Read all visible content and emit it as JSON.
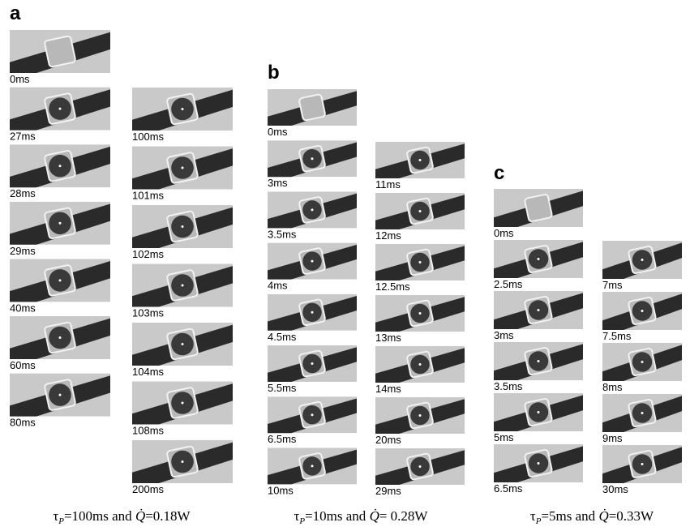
{
  "panels": [
    {
      "label": "a",
      "columns": [
        [
          "0ms",
          "27ms",
          "28ms",
          "29ms",
          "40ms",
          "60ms",
          "80ms"
        ],
        [
          "100ms",
          "101ms",
          "102ms",
          "103ms",
          "104ms",
          "108ms",
          "200ms"
        ]
      ],
      "caption": {
        "symbol": "τ",
        "subscript": "P",
        "text": "=100ms and ",
        "quantity": "Q̇",
        "value": "=0.18W"
      }
    },
    {
      "label": "b",
      "columns": [
        [
          "0ms",
          "3ms",
          "3.5ms",
          "4ms",
          "4.5ms",
          "5.5ms",
          "6.5ms",
          "10ms"
        ],
        [
          "11ms",
          "12ms",
          "12.5ms",
          "13ms",
          "14ms",
          "20ms",
          "29ms"
        ]
      ],
      "caption": {
        "symbol": "τ",
        "subscript": "P",
        "text": "=10ms and ",
        "quantity": "Q̇",
        "value": "= 0.28W"
      }
    },
    {
      "label": "c",
      "columns": [
        [
          "0ms",
          "2.5ms",
          "3ms",
          "3.5ms",
          "5ms",
          "6.5ms"
        ],
        [
          "7ms",
          "7.5ms",
          "8ms",
          "9ms",
          "30ms"
        ]
      ],
      "caption": {
        "symbol": "τ",
        "subscript": "P",
        "text": "=5ms and ",
        "quantity": "Q̇",
        "value": "=0.33W"
      }
    }
  ]
}
